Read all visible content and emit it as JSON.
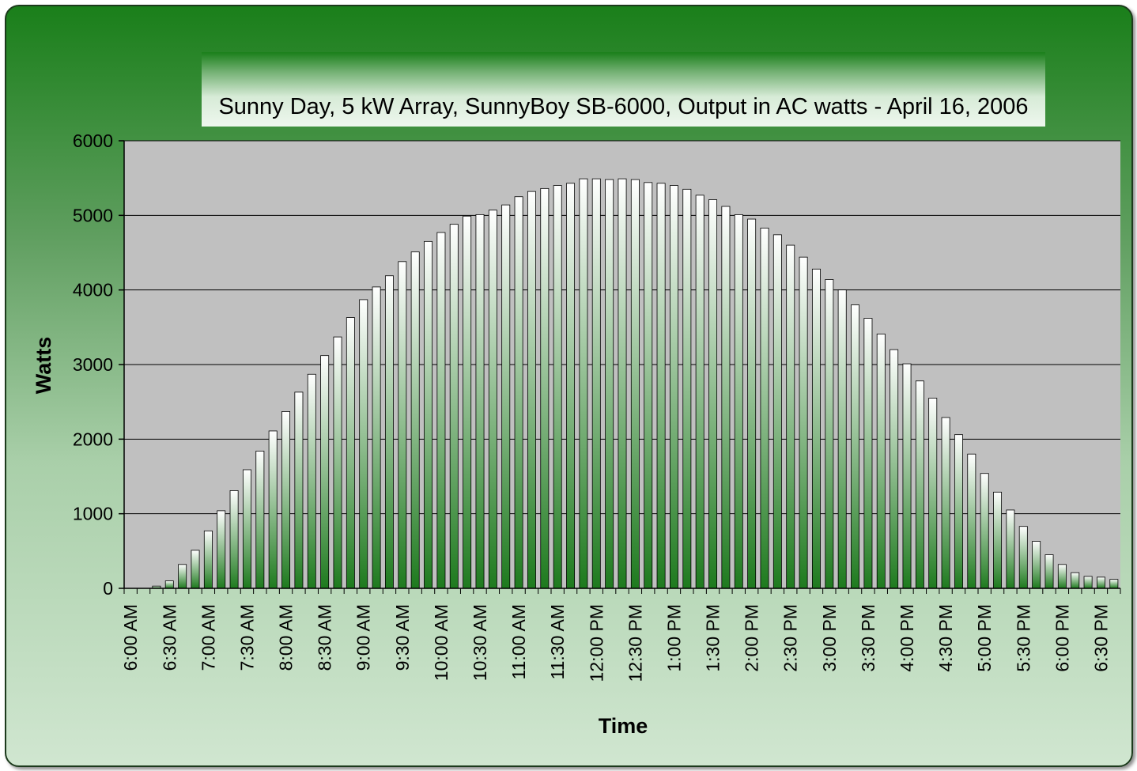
{
  "chart_data": {
    "type": "bar",
    "title": "Sunny Day, 5 kW Array, SunnyBoy SB-6000, Output in AC watts - April 16, 2006",
    "xlabel": "Time",
    "ylabel": "Watts",
    "ylim": [
      0,
      6000
    ],
    "yticks": [
      0,
      1000,
      2000,
      3000,
      4000,
      5000,
      6000
    ],
    "grid": true,
    "legend": "none",
    "x_tick_labels": [
      "6:00 AM",
      "6:30 AM",
      "7:00 AM",
      "7:30 AM",
      "8:00 AM",
      "8:30 AM",
      "9:00 AM",
      "9:30 AM",
      "10:00 AM",
      "10:30 AM",
      "11:00 AM",
      "11:30 AM",
      "12:00 PM",
      "12:30 PM",
      "1:00 PM",
      "1:30 PM",
      "2:00 PM",
      "2:30 PM",
      "3:00 PM",
      "3:30 PM",
      "4:00 PM",
      "4:30 PM",
      "5:00 PM",
      "5:30 PM",
      "6:00 PM",
      "6:30 PM"
    ],
    "values": [
      0,
      0,
      30,
      100,
      320,
      510,
      770,
      1040,
      1310,
      1590,
      1840,
      2110,
      2370,
      2630,
      2870,
      3120,
      3370,
      3630,
      3870,
      4040,
      4190,
      4380,
      4510,
      4650,
      4770,
      4880,
      4990,
      5010,
      5070,
      5140,
      5250,
      5320,
      5360,
      5400,
      5430,
      5490,
      5490,
      5480,
      5490,
      5480,
      5440,
      5430,
      5400,
      5350,
      5270,
      5210,
      5120,
      5010,
      4950,
      4830,
      4740,
      4600,
      4440,
      4280,
      4140,
      4000,
      3800,
      3620,
      3410,
      3200,
      3010,
      2780,
      2550,
      2290,
      2060,
      1800,
      1540,
      1290,
      1050,
      830,
      630,
      450,
      320,
      210,
      160,
      150,
      120
    ],
    "colors": {
      "plot_bg": "#c0c0c0",
      "bar_top": "#ffffff",
      "bar_bottom": "#1e7a1e",
      "grid": "#000000"
    }
  }
}
